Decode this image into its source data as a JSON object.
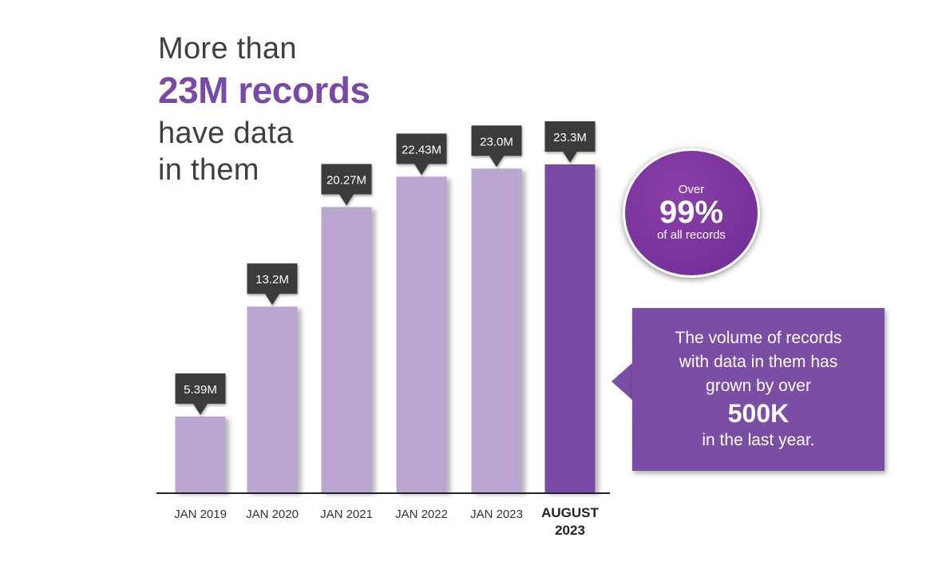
{
  "headline": {
    "line1": "More than",
    "big": "23M records",
    "line3": "have data",
    "line4": "in them"
  },
  "circle": {
    "top": "Over",
    "big": "99%",
    "bottom": "of all records"
  },
  "callout": {
    "lines": [
      "The volume of records",
      "with data in them has",
      "grown by over"
    ],
    "emphasis": "500K",
    "tail": "in the last year."
  },
  "colors": {
    "bar_light": "#baa6d1",
    "bar_highlight": "#7a4ba6",
    "label_box": "#3a3a3a",
    "accent": "#7a49a8"
  },
  "chart_data": {
    "type": "bar",
    "categories": [
      "JAN 2019",
      "JAN 2020",
      "JAN 2021",
      "JAN 2022",
      "JAN 2023",
      "AUGUST 2023"
    ],
    "values": [
      5.39,
      13.2,
      20.27,
      22.43,
      23.0,
      23.3
    ],
    "data_labels": [
      "5.39M",
      "13.2M",
      "20.27M",
      "22.43M",
      "23.0M",
      "23.3M"
    ],
    "unit": "M",
    "highlight_index": 5,
    "title": "",
    "xlabel": "",
    "ylabel": "",
    "ylim": [
      0,
      23.3
    ],
    "grid": false,
    "legend": "none"
  }
}
